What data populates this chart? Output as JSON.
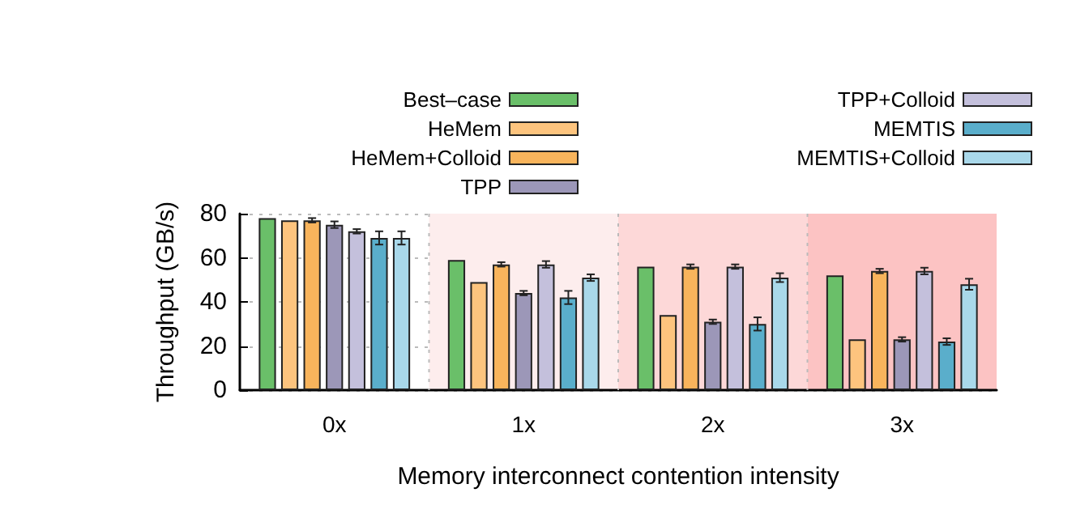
{
  "chart_data": {
    "type": "bar",
    "xlabel": "Memory interconnect contention intensity",
    "ylabel": "Throughput (GB/s)",
    "categories": [
      "0x",
      "1x",
      "2x",
      "3x"
    ],
    "ylim": [
      0,
      80
    ],
    "yticks": [
      0,
      20,
      40,
      60,
      80
    ],
    "grid": true,
    "legend": "top",
    "bands": [
      {
        "axis": "x",
        "from": "1x",
        "to": "1x",
        "color": "#fdeded"
      },
      {
        "axis": "x",
        "from": "2x",
        "to": "2x",
        "color": "#fdd8d8"
      },
      {
        "axis": "x",
        "from": "3x",
        "to": "3x",
        "color": "#fcc3c3"
      }
    ],
    "series": [
      {
        "name": "Best–case",
        "color": "#6abf69",
        "values": [
          78,
          59,
          56,
          52
        ]
      },
      {
        "name": "HeMem",
        "color": "#fdc47e",
        "values": [
          77,
          49,
          34,
          23
        ]
      },
      {
        "name": "HeMem+Colloid",
        "color": "#f8b45c",
        "values": [
          77,
          57,
          56,
          54
        ],
        "errors": [
          1,
          1,
          1,
          1
        ]
      },
      {
        "name": "TPP",
        "color": "#9c97b8",
        "values": [
          75,
          44,
          31,
          23
        ],
        "errors": [
          1.5,
          1,
          1,
          1
        ]
      },
      {
        "name": "TPP+Colloid",
        "color": "#c4c0dc",
        "values": [
          72,
          57,
          56,
          54
        ],
        "errors": [
          1,
          1.5,
          1,
          1.5
        ]
      },
      {
        "name": "MEMTIS",
        "color": "#5aaecb",
        "values": [
          69,
          42,
          30,
          22
        ],
        "errors": [
          3,
          3,
          3,
          1.5
        ]
      },
      {
        "name": "MEMTIS+Colloid",
        "color": "#a9d8ea",
        "values": [
          69,
          51,
          51,
          48
        ],
        "errors": [
          3,
          1.5,
          2,
          2.5
        ]
      }
    ]
  }
}
